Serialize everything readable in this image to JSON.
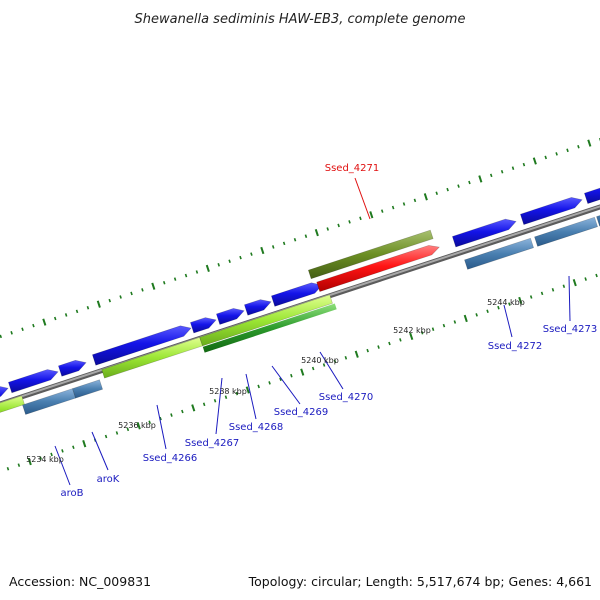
{
  "title": "Shewanella sediminis HAW-EB3, complete genome",
  "footer": {
    "accession": "Accession: NC_009831",
    "topology": "Topology: circular; Length: 5,517,674 bp; Genes: 4,661"
  },
  "scale_labels": [
    "5234 kbp",
    "5236 kbp",
    "5238 kbp",
    "5240 kbp",
    "5242 kbp",
    "5244 kbp"
  ],
  "gene_labels": [
    {
      "text": "aroB",
      "highlight": false
    },
    {
      "text": "aroK",
      "highlight": false
    },
    {
      "text": "Ssed_4266",
      "highlight": false
    },
    {
      "text": "Ssed_4267",
      "highlight": false
    },
    {
      "text": "Ssed_4268",
      "highlight": false
    },
    {
      "text": "Ssed_4269",
      "highlight": false
    },
    {
      "text": "Ssed_4270",
      "highlight": false
    },
    {
      "text": "Ssed_4271",
      "highlight": true
    },
    {
      "text": "Ssed_4272",
      "highlight": false
    },
    {
      "text": "Ssed_4273",
      "highlight": false
    }
  ],
  "colors": {
    "forward_cds": "#1010e0",
    "forward_feature": "#9be634",
    "reverse_cds": "#4a7fb0",
    "highlight_cds": "#ff1414",
    "highlight_feature": "#6b8e23",
    "backbone": "#808080",
    "tick": "#1f7a1f",
    "label": "#1a1abf",
    "highlight_label": "#e01010"
  }
}
